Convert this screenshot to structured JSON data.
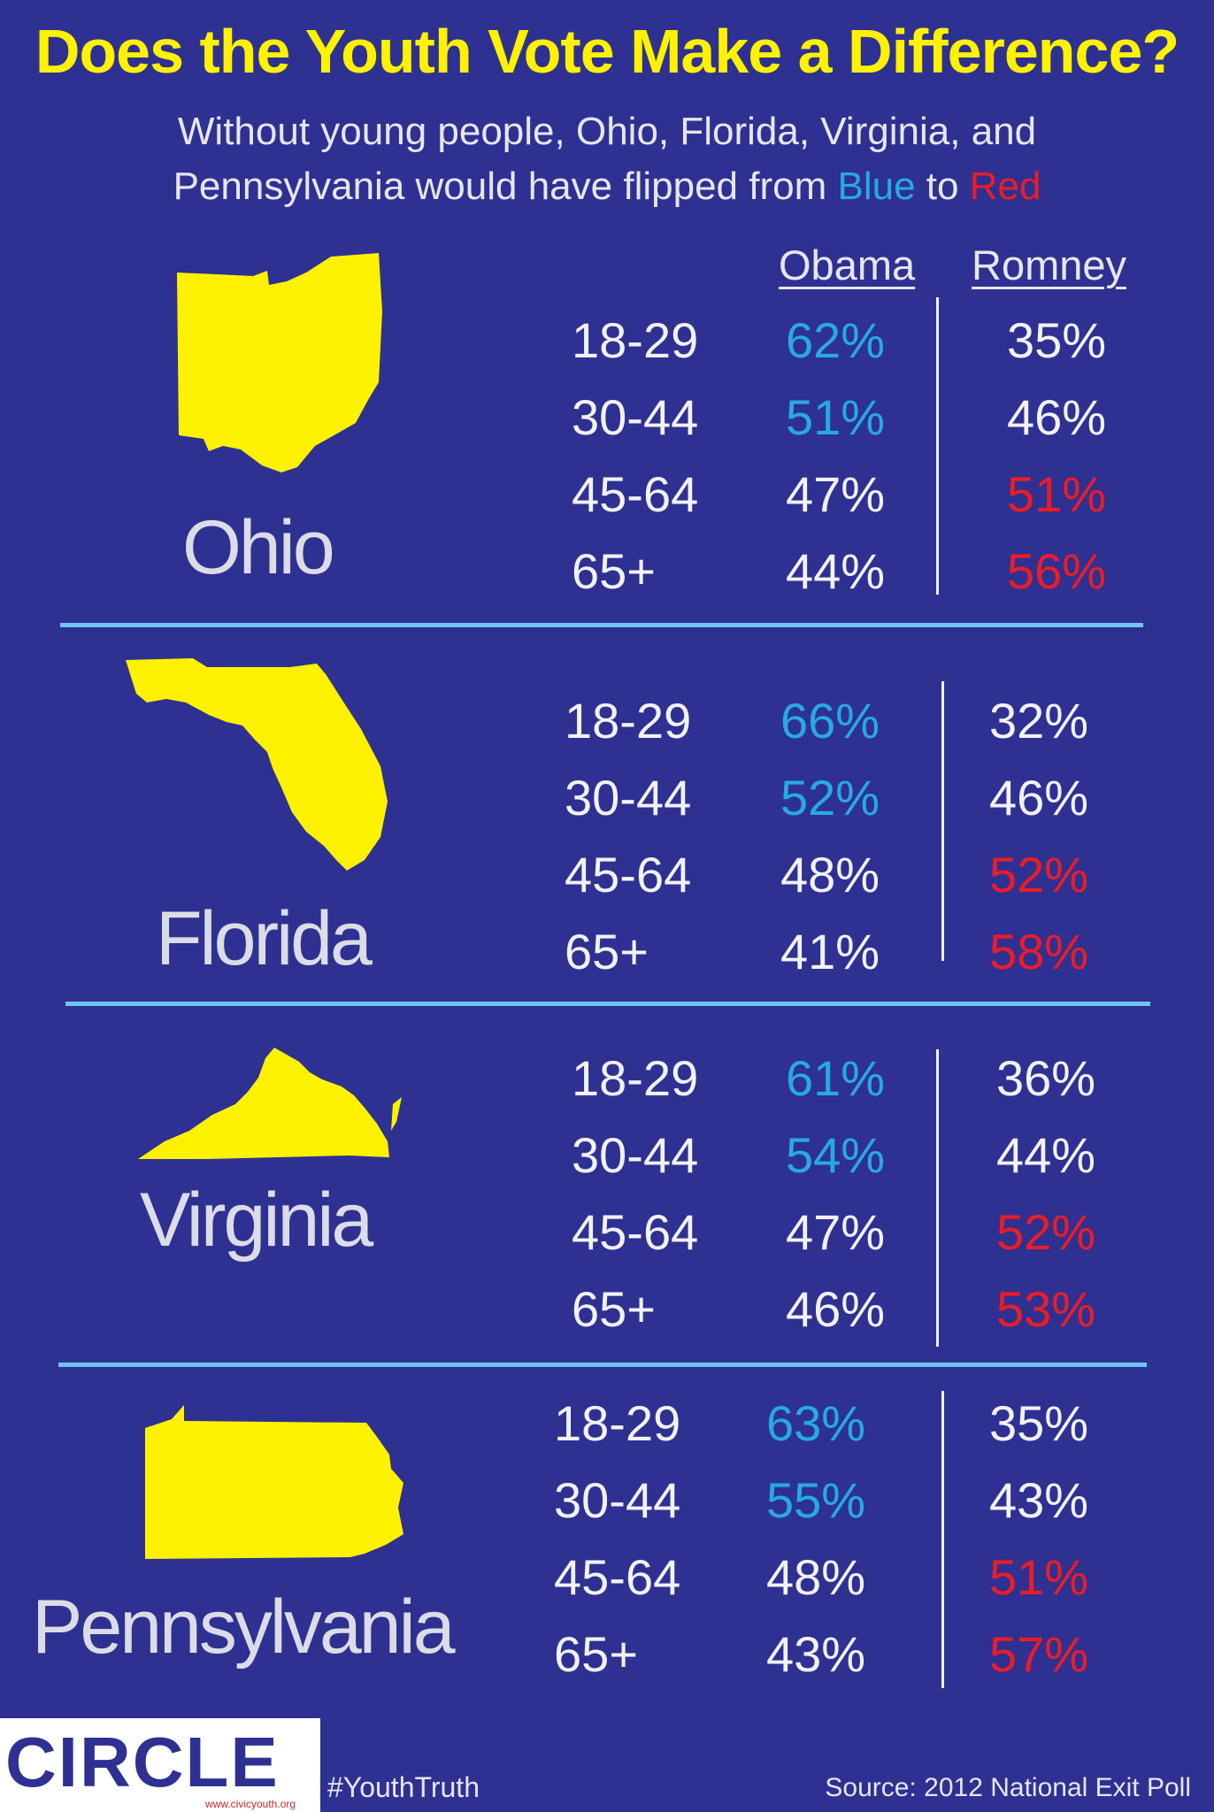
{
  "title": "Does the Youth Vote Make a Difference?",
  "subtitle": {
    "line1": "Without young people, Ohio, Florida, Virginia, and",
    "line2_prefix": "Pennsylvania would have flipped from ",
    "blue": "Blue",
    "middle": " to ",
    "red": "Red"
  },
  "columns": {
    "obama": "Obama",
    "romney": "Romney"
  },
  "colors": {
    "background": "#2e3192",
    "title": "#fff200",
    "blue": "#27aae1",
    "red": "#ed1c24",
    "divider": "#6ec6f2",
    "state_shape": "#fff200"
  },
  "states": [
    {
      "name": "Ohio",
      "rows": [
        {
          "age": "18-29",
          "obama": "62%",
          "obama_color": "blue",
          "romney": "35%",
          "romney_color": "white"
        },
        {
          "age": "30-44",
          "obama": "51%",
          "obama_color": "blue",
          "romney": "46%",
          "romney_color": "white"
        },
        {
          "age": "45-64",
          "obama": "47%",
          "obama_color": "white",
          "romney": "51%",
          "romney_color": "red"
        },
        {
          "age": "65+",
          "obama": "44%",
          "obama_color": "white",
          "romney": "56%",
          "romney_color": "red"
        }
      ]
    },
    {
      "name": "Florida",
      "rows": [
        {
          "age": "18-29",
          "obama": "66%",
          "obama_color": "blue",
          "romney": "32%",
          "romney_color": "white"
        },
        {
          "age": "30-44",
          "obama": "52%",
          "obama_color": "blue",
          "romney": "46%",
          "romney_color": "white"
        },
        {
          "age": "45-64",
          "obama": "48%",
          "obama_color": "white",
          "romney": "52%",
          "romney_color": "red"
        },
        {
          "age": "65+",
          "obama": "41%",
          "obama_color": "white",
          "romney": "58%",
          "romney_color": "red"
        }
      ]
    },
    {
      "name": "Virginia",
      "rows": [
        {
          "age": "18-29",
          "obama": "61%",
          "obama_color": "blue",
          "romney": "36%",
          "romney_color": "white"
        },
        {
          "age": "30-44",
          "obama": "54%",
          "obama_color": "blue",
          "romney": "44%",
          "romney_color": "white"
        },
        {
          "age": "45-64",
          "obama": "47%",
          "obama_color": "white",
          "romney": "52%",
          "romney_color": "red"
        },
        {
          "age": "65+",
          "obama": "46%",
          "obama_color": "white",
          "romney": "53%",
          "romney_color": "red"
        }
      ]
    },
    {
      "name": "Pennsylvania",
      "rows": [
        {
          "age": "18-29",
          "obama": "63%",
          "obama_color": "blue",
          "romney": "35%",
          "romney_color": "white"
        },
        {
          "age": "30-44",
          "obama": "55%",
          "obama_color": "blue",
          "romney": "43%",
          "romney_color": "white"
        },
        {
          "age": "45-64",
          "obama": "48%",
          "obama_color": "white",
          "romney": "51%",
          "romney_color": "red"
        },
        {
          "age": "65+",
          "obama": "43%",
          "obama_color": "white",
          "romney": "57%",
          "romney_color": "red"
        }
      ]
    }
  ],
  "footer": {
    "logo_text": "CIRCLE",
    "logo_url": "www.civicyouth.org",
    "hashtag": "#YouthTruth",
    "source": "Source:  2012 National Exit Poll"
  }
}
